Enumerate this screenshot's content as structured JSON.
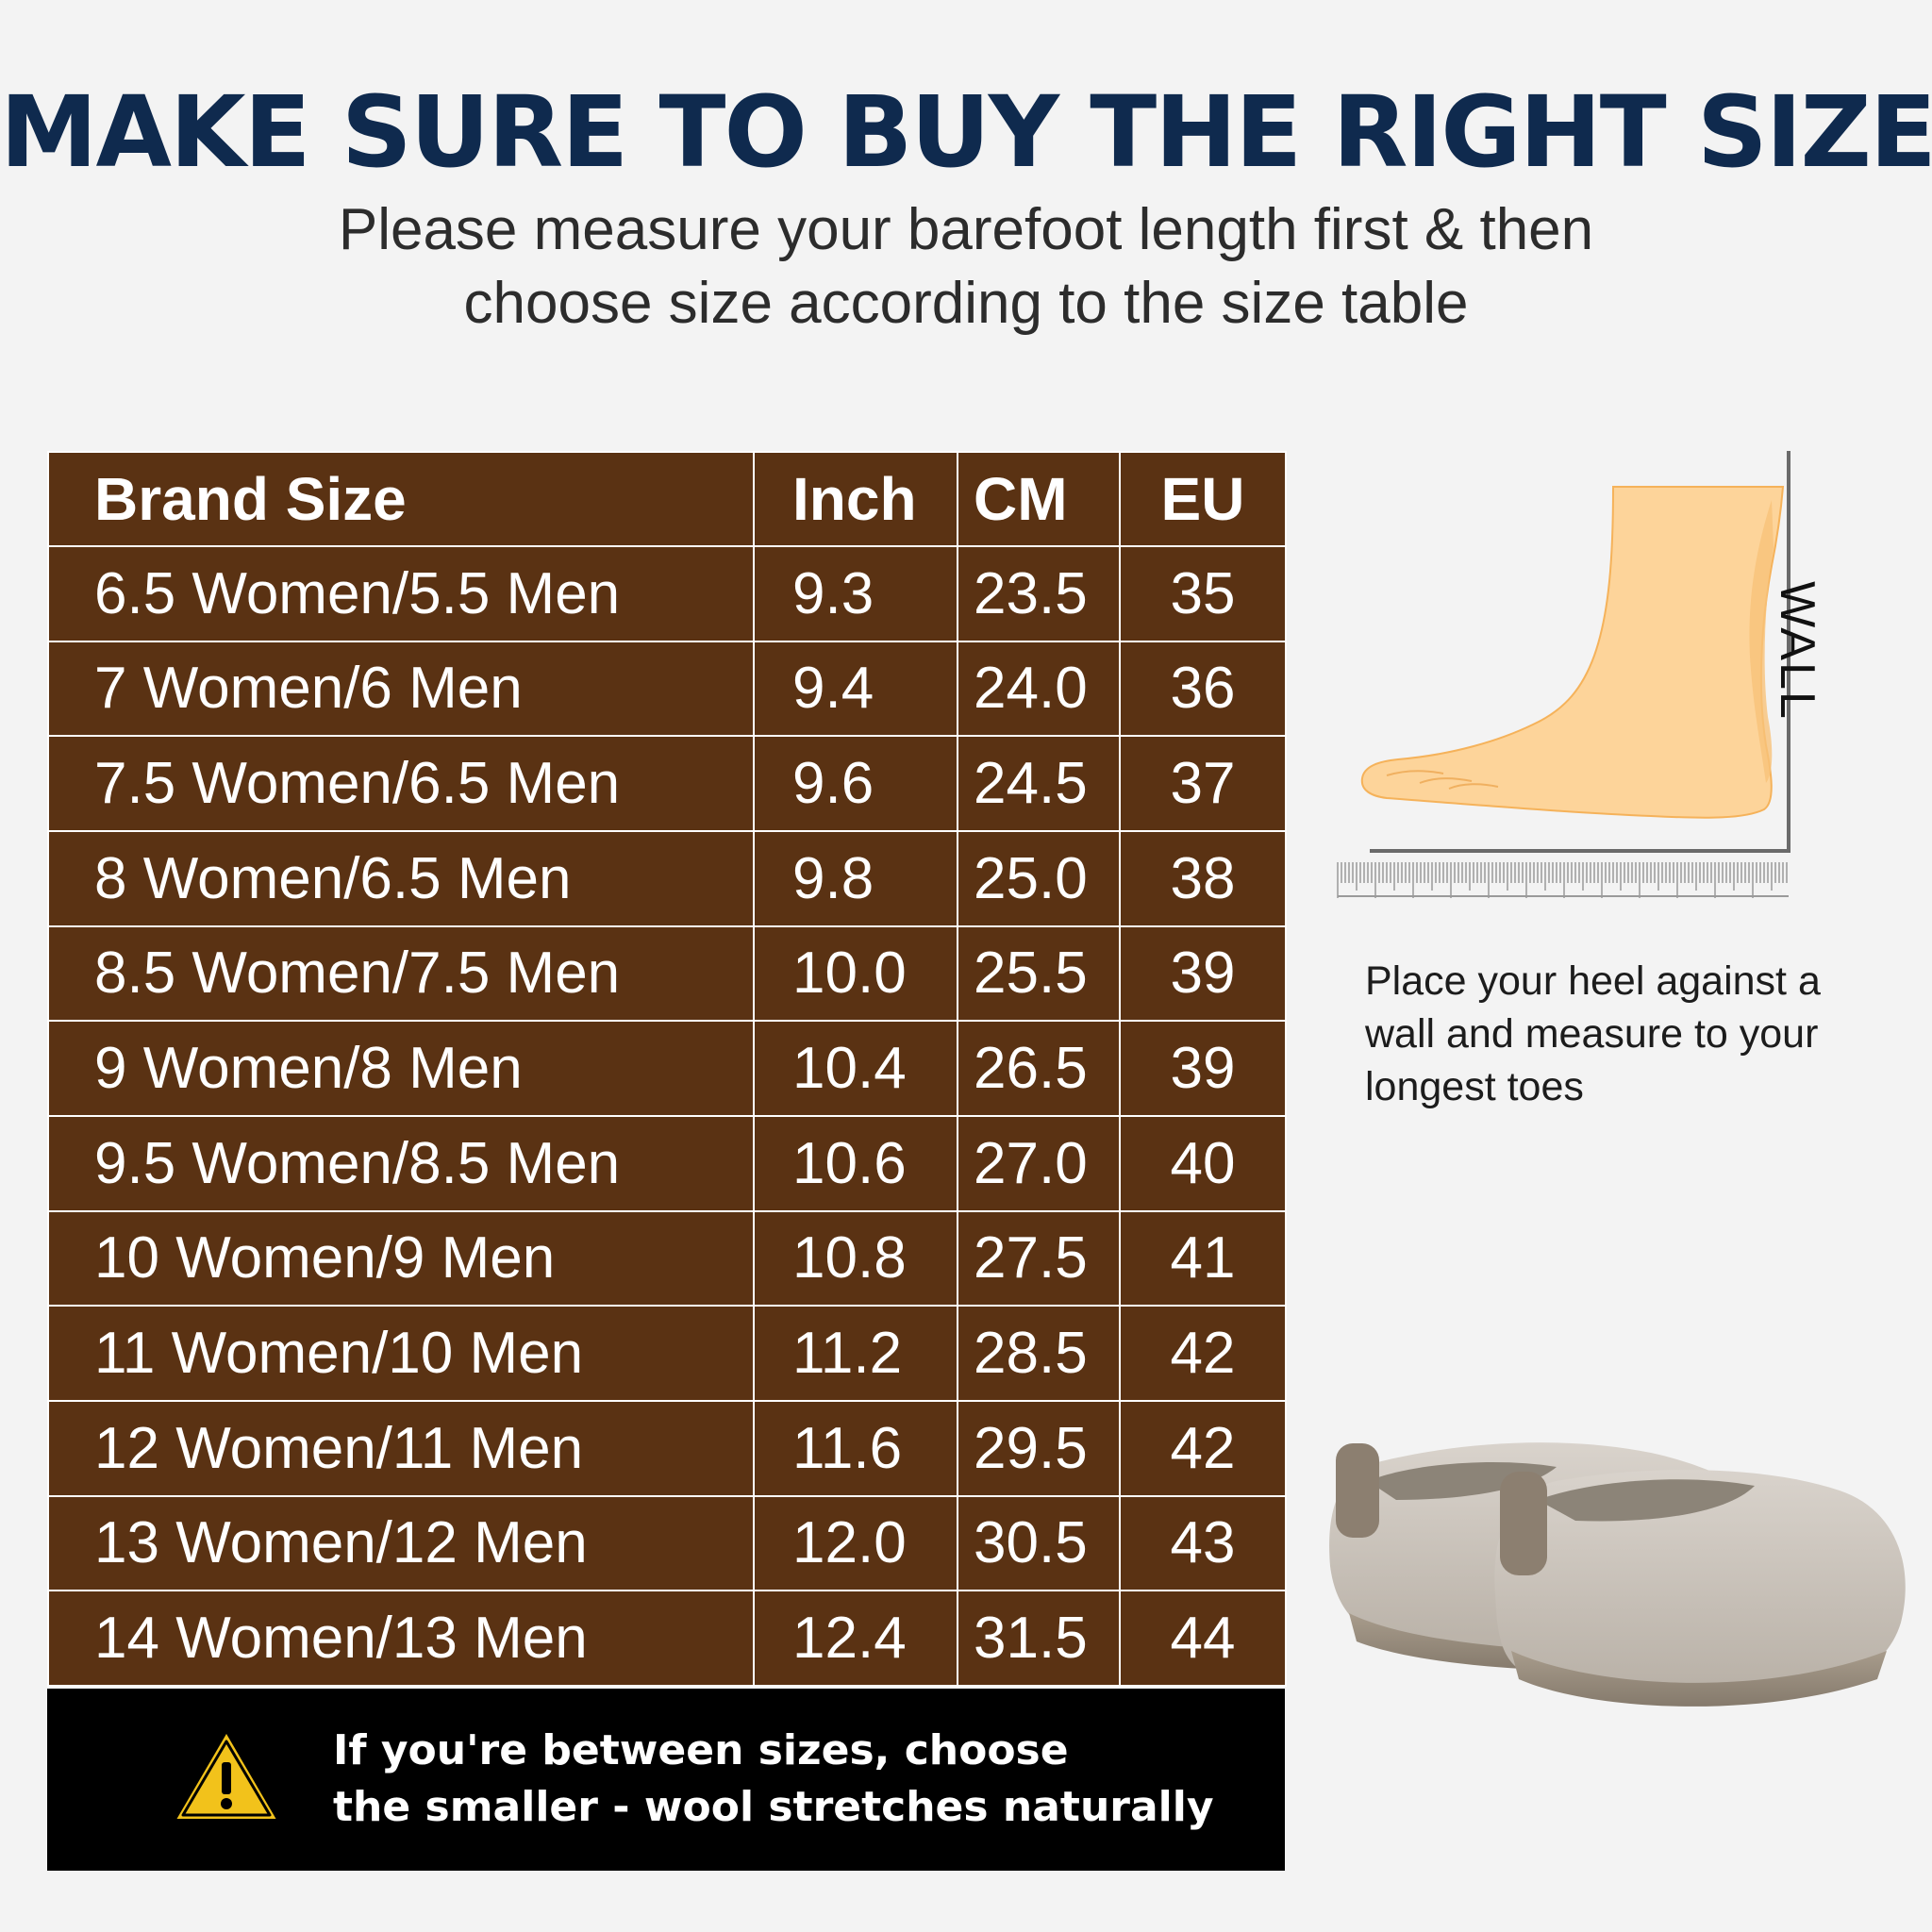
{
  "header": {
    "title": "MAKE SURE TO BUY THE RIGHT SIZE",
    "subtitle_line1": "Please measure your barefoot length first & then",
    "subtitle_line2": "choose size according to the size table"
  },
  "size_table": {
    "columns": [
      "Brand Size",
      "Inch",
      "CM",
      "EU"
    ],
    "rows": [
      [
        "6.5  Women/5.5 Men",
        "9.3",
        "23.5",
        "35"
      ],
      [
        "7 Women/6  Men",
        "9.4",
        "24.0",
        "36"
      ],
      [
        "7.5 Women/6.5 Men",
        "9.6",
        "24.5",
        "37"
      ],
      [
        "8 Women/6.5 Men",
        "9.8",
        "25.0",
        "38"
      ],
      [
        "8.5 Women/7.5 Men",
        "10.0",
        "25.5",
        "39"
      ],
      [
        "9 Women/8 Men",
        "10.4",
        "26.5",
        "39"
      ],
      [
        "9.5 Women/8.5 Men",
        "10.6",
        "27.0",
        "40"
      ],
      [
        "10 Women/9 Men",
        "10.8",
        "27.5",
        "41"
      ],
      [
        "11 Women/10 Men",
        "11.2",
        "28.5",
        "42"
      ],
      [
        "12 Women/11 Men",
        "11.6",
        "29.5",
        "42"
      ],
      [
        "13 Women/12 Men",
        "12.0",
        "30.5",
        "43"
      ],
      [
        "14 Women/13 Men",
        "12.4",
        "31.5",
        "44"
      ]
    ]
  },
  "tip": {
    "icon": "warning-icon",
    "line1": "If you're between sizes, choose",
    "line2": "the smaller - wool stretches naturally"
  },
  "diagram": {
    "wall_label": "WALL",
    "instruction_line1": "Place your heel against a",
    "instruction_line2": "wall and measure to your",
    "instruction_line3": "longest toes"
  },
  "colors": {
    "title": "#0f2a4e",
    "table_background": "#5a3213",
    "tip_background": "#000000",
    "warning_yellow": "#f2c21b",
    "foot_fill": "#fdd49a"
  }
}
